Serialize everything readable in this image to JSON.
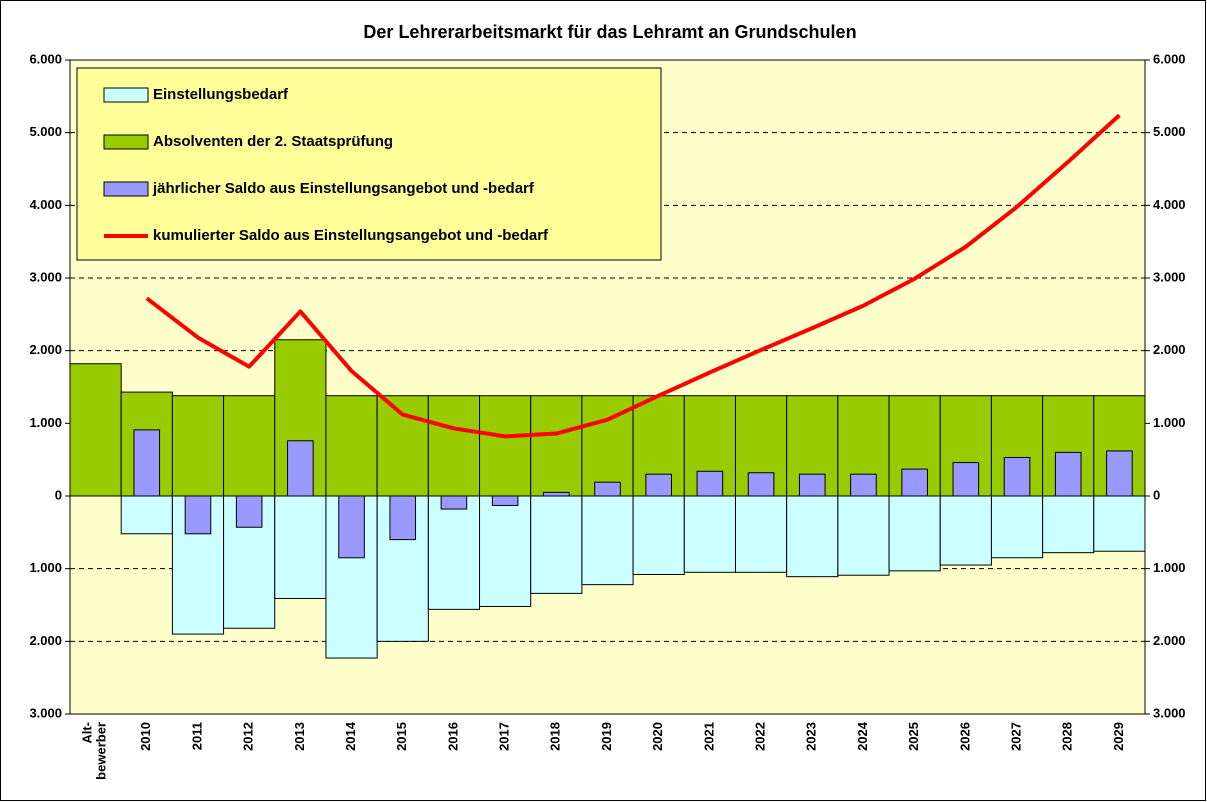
{
  "chart_data": {
    "type": "bar",
    "title": "Der Lehrerarbeitsmarkt für das Lehramt an Grundschulen",
    "categories": [
      "Alt-\nbewerber",
      "2010",
      "2011",
      "2012",
      "2013",
      "2014",
      "2015",
      "2016",
      "2017",
      "2018",
      "2019",
      "2020",
      "2021",
      "2022",
      "2023",
      "2024",
      "2025",
      "2026",
      "2027",
      "2028",
      "2029"
    ],
    "series": [
      {
        "name": "Einstellungsbedarf",
        "type": "bar",
        "color": "#ccffff",
        "values": [
          null,
          -520,
          -1900,
          -1820,
          -1410,
          -2230,
          -2000,
          -1560,
          -1520,
          -1340,
          -1220,
          -1080,
          -1050,
          -1050,
          -1110,
          -1090,
          -1030,
          -950,
          -850,
          -780,
          -760
        ]
      },
      {
        "name": "Absolventen der 2. Staatsprüfung",
        "type": "bar",
        "color": "#99cc00",
        "values": [
          1820,
          1430,
          1380,
          1380,
          2150,
          1380,
          1380,
          1380,
          1380,
          1380,
          1380,
          1380,
          1380,
          1380,
          1380,
          1380,
          1380,
          1380,
          1380,
          1380,
          1380
        ]
      },
      {
        "name": "jährlicher Saldo aus Einstellungsangebot und -bedarf",
        "type": "narrow-bar",
        "color": "#9999ff",
        "values": [
          null,
          910,
          -520,
          -430,
          760,
          -850,
          -600,
          -180,
          -130,
          50,
          190,
          300,
          340,
          320,
          300,
          300,
          370,
          460,
          530,
          600,
          620
        ]
      },
      {
        "name": "kumulierter Saldo aus Einstellungsangebot und -bedarf",
        "type": "line",
        "color": "#ff0000",
        "values": [
          null,
          2720,
          2180,
          1780,
          2540,
          1720,
          1120,
          930,
          820,
          860,
          1050,
          1380,
          1700,
          2010,
          2310,
          2620,
          2990,
          3430,
          3980,
          4600,
          5240
        ]
      }
    ],
    "ylim": [
      -3000,
      6000
    ],
    "yticks": [
      {
        "value": -3000,
        "label": "3.000"
      },
      {
        "value": -2000,
        "label": "2.000"
      },
      {
        "value": -1000,
        "label": "1.000"
      },
      0,
      {
        "value": 1000,
        "label": "1.000"
      },
      {
        "value": 2000,
        "label": "2.000"
      },
      {
        "value": 3000,
        "label": "3.000"
      },
      {
        "value": 4000,
        "label": "4.000"
      },
      {
        "value": 5000,
        "label": "5.000"
      },
      {
        "value": 6000,
        "label": "6.000"
      }
    ],
    "grid": true,
    "legend": "top-left",
    "background": "#ffffcc"
  }
}
